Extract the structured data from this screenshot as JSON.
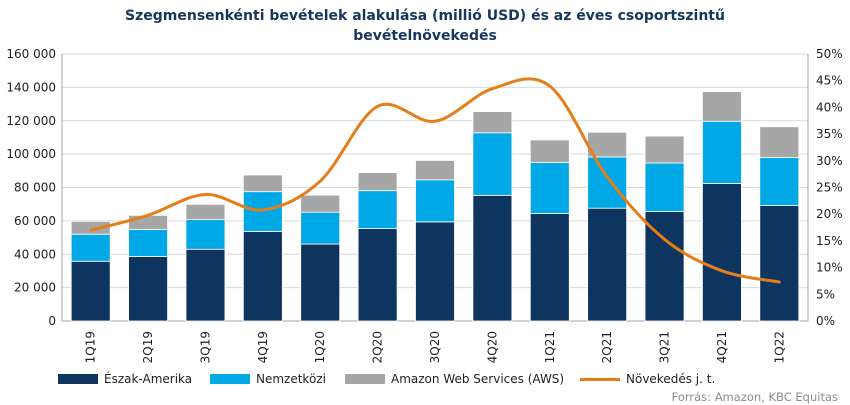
{
  "title_line1": "Szegmensenkénti bevételek alakulása (millió USD) és az éves csoportszintű",
  "title_line2": "bevételnövekedés",
  "source": "Forrás: Amazon, KBC Equitas",
  "colors": {
    "north_america": "#0e3460",
    "international": "#00a8e6",
    "aws": "#a6a6a6",
    "growth": "#e57e1a"
  },
  "chart_data": {
    "type": "bar",
    "stacked": true,
    "categories": [
      "1Q19",
      "2Q19",
      "3Q19",
      "4Q19",
      "1Q20",
      "2Q20",
      "3Q20",
      "4Q20",
      "1Q21",
      "2Q21",
      "3Q21",
      "4Q21",
      "1Q22"
    ],
    "series": [
      {
        "name": "Észak-Amerika",
        "type": "bar",
        "axis": "left",
        "values": [
          35800,
          38700,
          43000,
          53700,
          46100,
          55400,
          59400,
          75300,
          64400,
          67600,
          65600,
          82400,
          69200
        ]
      },
      {
        "name": "Nemzetközi",
        "type": "bar",
        "axis": "left",
        "values": [
          16200,
          16200,
          17900,
          23800,
          19100,
          22700,
          25200,
          37500,
          30600,
          30700,
          29100,
          37300,
          28800
        ]
      },
      {
        "name": "Amazon Web Services (AWS)",
        "type": "bar",
        "axis": "left",
        "values": [
          7700,
          8400,
          9000,
          10000,
          10200,
          10800,
          11600,
          12700,
          13500,
          14800,
          16100,
          17800,
          18400
        ]
      },
      {
        "name": "Növekedés j. t.",
        "type": "line",
        "axis": "right",
        "values": [
          0.17,
          0.198,
          0.237,
          0.208,
          0.262,
          0.402,
          0.374,
          0.435,
          0.44,
          0.27,
          0.153,
          0.094,
          0.073
        ]
      }
    ],
    "left_axis": {
      "min": 0,
      "max": 160000,
      "step": 20000,
      "tick_labels": [
        "0",
        "20 000",
        "40 000",
        "60 000",
        "80 000",
        "100 000",
        "120 000",
        "140 000",
        "160 000"
      ]
    },
    "right_axis": {
      "min": 0,
      "max": 0.5,
      "step": 0.05,
      "tick_labels": [
        "0%",
        "5%",
        "10%",
        "15%",
        "20%",
        "25%",
        "30%",
        "35%",
        "40%",
        "45%",
        "50%"
      ]
    },
    "grid": true,
    "legend_position": "bottom"
  }
}
